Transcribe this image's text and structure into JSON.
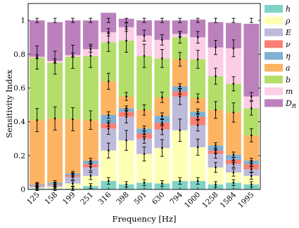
{
  "chart_data": {
    "type": "bar",
    "stacked": true,
    "xlabel": "Frequency [Hz]",
    "ylabel": "Sensitivity Index",
    "ylim": [
      0,
      1.1
    ],
    "yticks": [
      "0",
      "0.2",
      "0.4",
      "0.6",
      "0.8",
      "1"
    ],
    "legend_position": "right",
    "categories": [
      "125",
      "158",
      "199",
      "251",
      "316",
      "398",
      "501",
      "630",
      "794",
      "1000",
      "1258",
      "1584",
      "1995"
    ],
    "series": [
      {
        "name": "h",
        "label_base": "h",
        "label_sub": "",
        "color": "#7fd3c4",
        "values": [
          0.005,
          0.005,
          0.005,
          0.02,
          0.05,
          0.03,
          0.04,
          0.035,
          0.05,
          0.05,
          0.03,
          0.04,
          0.03
        ]
      },
      {
        "name": "ρ",
        "label_base": "ρ",
        "label_sub": "",
        "color": "#ffffb3",
        "values": [
          0.005,
          0.01,
          0.03,
          0.06,
          0.18,
          0.26,
          0.17,
          0.21,
          0.3,
          0.2,
          0.1,
          0.06,
          0.05
        ]
      },
      {
        "name": "E",
        "label_base": "E",
        "label_sub": "",
        "color": "#bebada",
        "values": [
          0.01,
          0.01,
          0.04,
          0.05,
          0.13,
          0.14,
          0.09,
          0.11,
          0.2,
          0.13,
          0.08,
          0.05,
          0.04
        ]
      },
      {
        "name": "ν",
        "label_base": "ν",
        "label_sub": "",
        "color": "#fb8072",
        "values": [
          0.005,
          0.005,
          0.01,
          0.02,
          0.03,
          0.03,
          0.03,
          0.04,
          0.03,
          0.05,
          0.02,
          0.025,
          0.03
        ]
      },
      {
        "name": "η",
        "label_base": "η",
        "label_sub": "",
        "color": "#80b1d3",
        "values": [
          0.005,
          0.01,
          0.01,
          0.02,
          0.05,
          0.02,
          0.03,
          0.04,
          0.03,
          0.03,
          0.03,
          0.03,
          0.02
        ]
      },
      {
        "name": "a",
        "label_base": "a",
        "label_sub": "",
        "color": "#fdb462",
        "values": [
          0.38,
          0.38,
          0.32,
          0.24,
          0.2,
          0.07,
          0.11,
          0.11,
          0.16,
          0.08,
          0.21,
          0.25,
          0.15
        ]
      },
      {
        "name": "b",
        "label_base": "b",
        "label_sub": "",
        "color": "#b3de69",
        "values": [
          0.37,
          0.33,
          0.37,
          0.38,
          0.23,
          0.33,
          0.32,
          0.23,
          0.13,
          0.23,
          0.2,
          0.17,
          0.16
        ]
      },
      {
        "name": "m",
        "label_base": "m",
        "label_sub": "",
        "color": "#fccde5",
        "values": [
          0.005,
          0.01,
          0.01,
          0.04,
          0.06,
          0.08,
          0.12,
          0.11,
          0.02,
          0.13,
          0.17,
          0.21,
          0.07
        ]
      },
      {
        "name": "D_R",
        "label_base": "D",
        "label_sub": "R",
        "color": "#bc80bd",
        "values": [
          0.215,
          0.23,
          0.205,
          0.17,
          0.115,
          0.05,
          0.09,
          0.115,
          0.08,
          0.105,
          0.15,
          0.15,
          0.43
        ]
      }
    ]
  }
}
